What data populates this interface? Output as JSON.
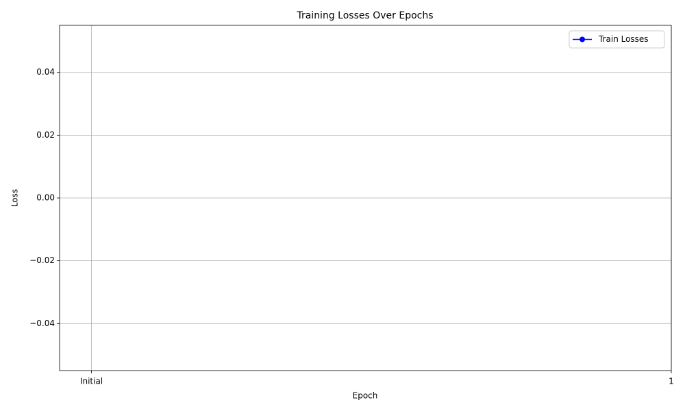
{
  "chart_data": {
    "type": "line",
    "title": "Training Losses Over Epochs",
    "xlabel": "Epoch",
    "ylabel": "Loss",
    "categories": [
      "Initial",
      "1"
    ],
    "series": [
      {
        "name": "Train Losses",
        "color": "#0000ff",
        "values": [
          null,
          null
        ]
      }
    ],
    "ylim": [
      -0.055,
      0.055
    ],
    "yticks": [
      {
        "value": -0.04,
        "label": "−0.04"
      },
      {
        "value": -0.02,
        "label": "−0.02"
      },
      {
        "value": 0.0,
        "label": "0.00"
      },
      {
        "value": 0.02,
        "label": "0.02"
      },
      {
        "value": 0.04,
        "label": "0.04"
      }
    ],
    "grid": true,
    "legend": "upper right",
    "marker": "o"
  }
}
